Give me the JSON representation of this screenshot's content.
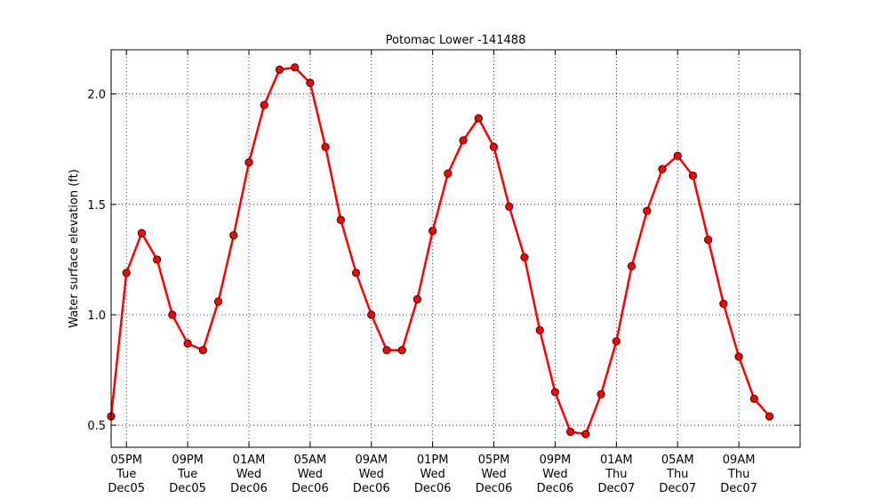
{
  "chart_data": {
    "type": "line",
    "title": "Potomac Lower -141488",
    "xlabel": "",
    "ylabel": "Water surface elevation (ft)",
    "ylim": [
      0.4,
      2.2
    ],
    "xlim": [
      "2017-12-05T16:00",
      "2017-12-07T13:00"
    ],
    "grid": true,
    "y_ticks": [
      0.5,
      1.0,
      1.5,
      2.0
    ],
    "y_tick_labels": [
      "0.5",
      "1.0",
      "1.5",
      "2.0"
    ],
    "x_ticks": [
      {
        "time": "2017-12-05T17:00",
        "label": [
          "05PM",
          "Tue",
          "Dec05"
        ]
      },
      {
        "time": "2017-12-05T21:00",
        "label": [
          "09PM",
          "Tue",
          "Dec05"
        ]
      },
      {
        "time": "2017-12-06T01:00",
        "label": [
          "01AM",
          "Wed",
          "Dec06"
        ]
      },
      {
        "time": "2017-12-06T05:00",
        "label": [
          "05AM",
          "Wed",
          "Dec06"
        ]
      },
      {
        "time": "2017-12-06T09:00",
        "label": [
          "09AM",
          "Wed",
          "Dec06"
        ]
      },
      {
        "time": "2017-12-06T13:00",
        "label": [
          "01PM",
          "Wed",
          "Dec06"
        ]
      },
      {
        "time": "2017-12-06T17:00",
        "label": [
          "05PM",
          "Wed",
          "Dec06"
        ]
      },
      {
        "time": "2017-12-06T21:00",
        "label": [
          "09PM",
          "Wed",
          "Dec06"
        ]
      },
      {
        "time": "2017-12-07T01:00",
        "label": [
          "01AM",
          "Thu",
          "Dec07"
        ]
      },
      {
        "time": "2017-12-07T05:00",
        "label": [
          "05AM",
          "Thu",
          "Dec07"
        ]
      },
      {
        "time": "2017-12-07T09:00",
        "label": [
          "09AM",
          "Thu",
          "Dec07"
        ]
      }
    ],
    "series": [
      {
        "color": "#ff0000",
        "marker": "circle",
        "x": [
          "2017-12-05T16:00",
          "2017-12-05T17:00",
          "2017-12-05T18:00",
          "2017-12-05T19:00",
          "2017-12-05T20:00",
          "2017-12-05T21:00",
          "2017-12-05T22:00",
          "2017-12-05T23:00",
          "2017-12-06T00:00",
          "2017-12-06T01:00",
          "2017-12-06T02:00",
          "2017-12-06T03:00",
          "2017-12-06T04:00",
          "2017-12-06T05:00",
          "2017-12-06T06:00",
          "2017-12-06T07:00",
          "2017-12-06T08:00",
          "2017-12-06T09:00",
          "2017-12-06T10:00",
          "2017-12-06T11:00",
          "2017-12-06T12:00",
          "2017-12-06T13:00",
          "2017-12-06T14:00",
          "2017-12-06T15:00",
          "2017-12-06T16:00",
          "2017-12-06T17:00",
          "2017-12-06T18:00",
          "2017-12-06T19:00",
          "2017-12-06T20:00",
          "2017-12-06T21:00",
          "2017-12-06T22:00",
          "2017-12-06T23:00",
          "2017-12-07T00:00",
          "2017-12-07T01:00",
          "2017-12-07T02:00",
          "2017-12-07T03:00",
          "2017-12-07T04:00",
          "2017-12-07T05:00",
          "2017-12-07T06:00",
          "2017-12-07T07:00",
          "2017-12-07T08:00",
          "2017-12-07T09:00",
          "2017-12-07T10:00",
          "2017-12-07T11:00"
        ],
        "y": [
          0.54,
          1.19,
          1.37,
          1.25,
          1.0,
          0.87,
          0.84,
          1.06,
          1.36,
          1.69,
          1.95,
          2.11,
          2.12,
          2.05,
          1.76,
          1.43,
          1.19,
          1.0,
          0.84,
          0.84,
          1.07,
          1.38,
          1.64,
          1.79,
          1.89,
          1.76,
          1.49,
          1.26,
          0.93,
          0.65,
          0.47,
          0.46,
          0.64,
          0.88,
          1.22,
          1.47,
          1.66,
          1.72,
          1.63,
          1.34,
          1.05,
          0.81,
          0.62,
          0.54
        ]
      }
    ]
  }
}
